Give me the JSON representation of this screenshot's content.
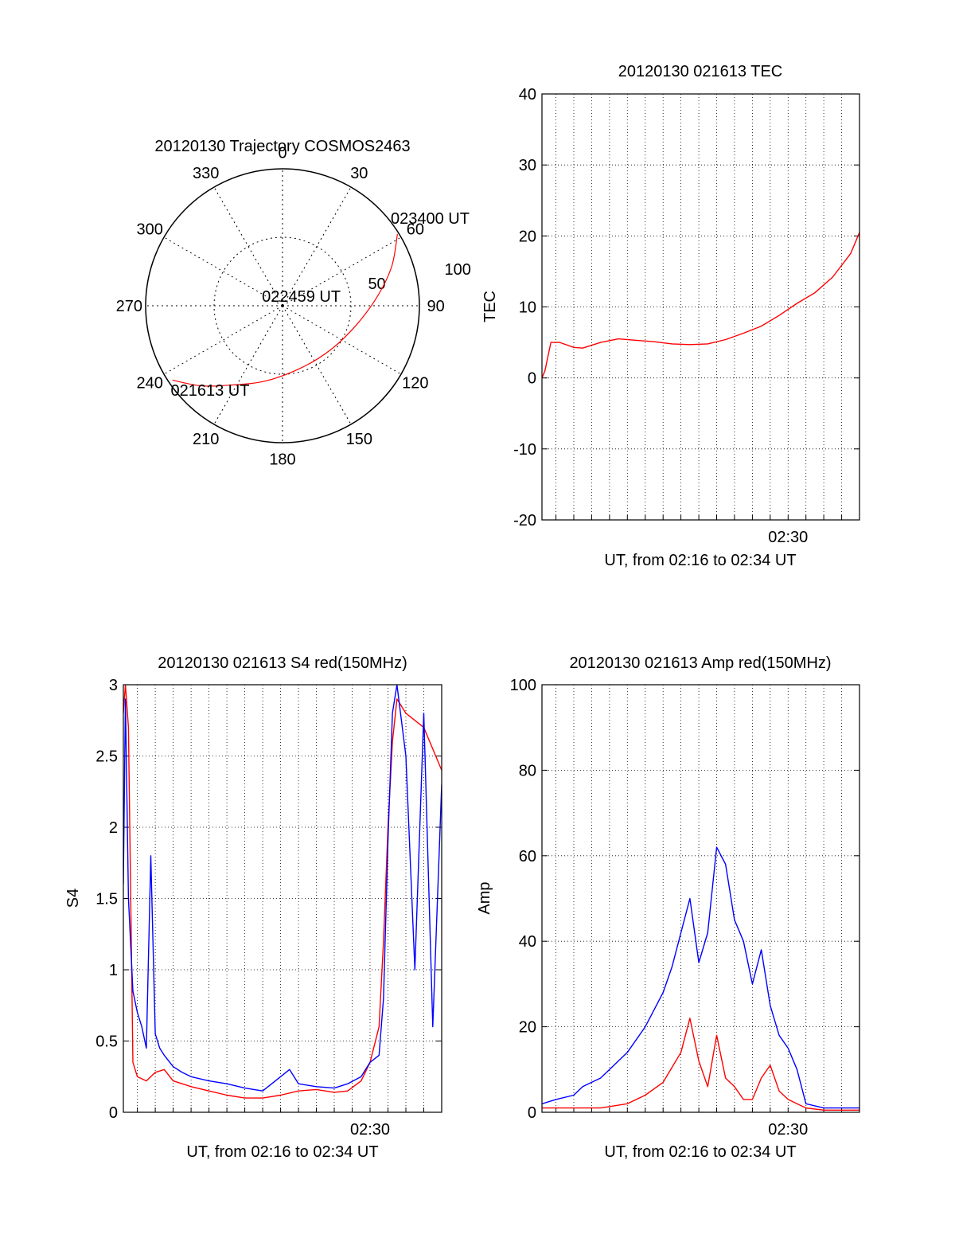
{
  "chart_data": [
    {
      "type": "polar",
      "title": "20120130 Trajectory COSMOS2463",
      "azimuth_labels": [
        "0",
        "30",
        "60",
        "90",
        "120",
        "150",
        "180",
        "210",
        "240",
        "270",
        "300",
        "330"
      ],
      "elevation_rings": [
        {
          "value": 0,
          "label": ""
        },
        {
          "value": 50,
          "label": "50"
        },
        {
          "value": 100,
          "label": "100"
        }
      ],
      "track": {
        "color": "#ff0000",
        "points": [
          {
            "az": 236,
            "r": 97
          },
          {
            "az": 226,
            "r": 84
          },
          {
            "az": 214,
            "r": 70
          },
          {
            "az": 192,
            "r": 56
          },
          {
            "az": 160,
            "r": 47
          },
          {
            "az": 130,
            "r": 48
          },
          {
            "az": 104,
            "r": 56
          },
          {
            "az": 84,
            "r": 70
          },
          {
            "az": 70,
            "r": 85
          },
          {
            "az": 58,
            "r": 99
          }
        ]
      },
      "annotations": [
        {
          "text": "023400 UT",
          "az": 52,
          "r": 104
        },
        {
          "text": "022459 UT",
          "az": 300,
          "r": 14
        },
        {
          "text": "021613 UT",
          "az": 232,
          "r": 100
        }
      ]
    },
    {
      "type": "line",
      "title": "20120130 021613 TEC",
      "xlabel": "UT, from 02:16 to 02:34 UT",
      "ylabel": "TEC",
      "xlim": [
        "02:16:13",
        "02:34:00"
      ],
      "ylim": [
        -20,
        40
      ],
      "yticks": [
        -20,
        -10,
        0,
        10,
        20,
        30,
        40
      ],
      "xtick_labels": [
        {
          "t": "02:30:00",
          "label": "02:30"
        }
      ],
      "grid": true,
      "series": [
        {
          "color": "#ff0000",
          "x": [
            "02:16:13",
            "02:16:23",
            "02:16:43",
            "02:17:13",
            "02:18:00",
            "02:18:30",
            "02:19:30",
            "02:20:30",
            "02:21:30",
            "02:22:30",
            "02:23:30",
            "02:24:30",
            "02:25:30",
            "02:26:30",
            "02:27:30",
            "02:28:30",
            "02:29:30",
            "02:30:30",
            "02:31:30",
            "02:32:30",
            "02:33:30",
            "02:34:00"
          ],
          "y": [
            0,
            1,
            5,
            5,
            4.3,
            4.2,
            5.0,
            5.5,
            5.3,
            5.1,
            4.8,
            4.7,
            4.8,
            5.4,
            6.3,
            7.3,
            8.8,
            10.5,
            12.0,
            14.2,
            17.5,
            20.5
          ]
        }
      ]
    },
    {
      "type": "line",
      "title": "20120130 021613 S4 red(150MHz)",
      "xlabel": "UT, from 02:16 to 02:34 UT",
      "ylabel": "S4",
      "xlim": [
        "02:16:13",
        "02:34:00"
      ],
      "ylim": [
        0,
        3
      ],
      "yticks": [
        0,
        0.5,
        1,
        1.5,
        2,
        2.5,
        3
      ],
      "ytick_labels": [
        "0",
        "0.5",
        "1",
        "1.5",
        "2",
        "2.5",
        "3"
      ],
      "xtick_labels": [
        {
          "t": "02:30:00",
          "label": "02:30"
        }
      ],
      "grid": true,
      "series": [
        {
          "color": "#ff0000",
          "x": [
            "02:16:13",
            "02:16:20",
            "02:16:30",
            "02:16:45",
            "02:17:00",
            "02:17:30",
            "02:18:00",
            "02:18:30",
            "02:19:00",
            "02:19:30",
            "02:20:00",
            "02:21:00",
            "02:22:00",
            "02:23:00",
            "02:24:00",
            "02:25:00",
            "02:26:00",
            "02:27:00",
            "02:28:00",
            "02:28:45",
            "02:29:30",
            "02:30:00",
            "02:30:30",
            "02:30:45",
            "02:31:00",
            "02:31:15",
            "02:31:30",
            "02:32:00",
            "02:33:00",
            "02:34:00"
          ],
          "y": [
            2.8,
            3.0,
            2.7,
            0.35,
            0.25,
            0.22,
            0.28,
            0.3,
            0.22,
            0.2,
            0.18,
            0.15,
            0.12,
            0.1,
            0.1,
            0.12,
            0.15,
            0.16,
            0.14,
            0.15,
            0.22,
            0.35,
            0.6,
            1.2,
            2.0,
            2.6,
            2.9,
            2.8,
            2.7,
            2.4
          ]
        },
        {
          "color": "#0000ff",
          "x": [
            "02:16:13",
            "02:16:20",
            "02:16:30",
            "02:16:45",
            "02:17:00",
            "02:17:15",
            "02:17:30",
            "02:17:45",
            "02:18:00",
            "02:18:15",
            "02:18:30",
            "02:19:00",
            "02:19:30",
            "02:20:00",
            "02:21:00",
            "02:22:00",
            "02:23:00",
            "02:24:00",
            "02:25:00",
            "02:25:30",
            "02:26:00",
            "02:27:00",
            "02:28:00",
            "02:28:45",
            "02:29:30",
            "02:30:00",
            "02:30:30",
            "02:30:45",
            "02:31:00",
            "02:31:15",
            "02:31:30",
            "02:32:00",
            "02:32:30",
            "02:33:00",
            "02:33:30",
            "02:34:00"
          ],
          "y": [
            1.6,
            2.9,
            1.5,
            0.85,
            0.7,
            0.6,
            0.45,
            1.8,
            0.55,
            0.45,
            0.4,
            0.32,
            0.28,
            0.25,
            0.22,
            0.2,
            0.17,
            0.15,
            0.25,
            0.3,
            0.2,
            0.18,
            0.17,
            0.2,
            0.25,
            0.35,
            0.4,
            0.8,
            1.9,
            2.8,
            3.0,
            2.5,
            1.0,
            2.8,
            0.6,
            2.3
          ]
        }
      ]
    },
    {
      "type": "line",
      "title": "20120130 021613 Amp red(150MHz)",
      "xlabel": "UT, from 02:16 to 02:34 UT",
      "ylabel": "Amp",
      "xlim": [
        "02:16:13",
        "02:34:00"
      ],
      "ylim": [
        0,
        100
      ],
      "yticks": [
        0,
        20,
        40,
        60,
        80,
        100
      ],
      "xtick_labels": [
        {
          "t": "02:30:00",
          "label": "02:30"
        }
      ],
      "grid": true,
      "series": [
        {
          "color": "#ff0000",
          "x": [
            "02:16:13",
            "02:18:00",
            "02:19:30",
            "02:21:00",
            "02:22:00",
            "02:23:00",
            "02:24:00",
            "02:24:30",
            "02:25:00",
            "02:25:30",
            "02:26:00",
            "02:26:30",
            "02:27:00",
            "02:27:30",
            "02:28:00",
            "02:28:30",
            "02:29:00",
            "02:29:30",
            "02:30:00",
            "02:30:30",
            "02:31:00",
            "02:32:00",
            "02:34:00"
          ],
          "y": [
            1,
            1,
            1,
            2,
            4,
            7,
            14,
            22,
            12,
            6,
            18,
            8,
            6,
            3,
            3,
            8,
            11,
            5,
            3,
            2,
            1,
            0.5,
            0.5
          ]
        },
        {
          "color": "#0000ff",
          "x": [
            "02:16:13",
            "02:17:00",
            "02:18:00",
            "02:18:30",
            "02:19:00",
            "02:19:30",
            "02:20:00",
            "02:21:00",
            "02:22:00",
            "02:23:00",
            "02:23:30",
            "02:24:00",
            "02:24:30",
            "02:25:00",
            "02:25:30",
            "02:26:00",
            "02:26:30",
            "02:27:00",
            "02:27:30",
            "02:28:00",
            "02:28:30",
            "02:29:00",
            "02:29:30",
            "02:30:00",
            "02:30:30",
            "02:31:00",
            "02:32:00",
            "02:34:00"
          ],
          "y": [
            2,
            3,
            4,
            6,
            7,
            8,
            10,
            14,
            20,
            28,
            34,
            42,
            50,
            35,
            42,
            62,
            58,
            45,
            40,
            30,
            38,
            25,
            18,
            15,
            10,
            2,
            1,
            1
          ]
        }
      ]
    }
  ]
}
